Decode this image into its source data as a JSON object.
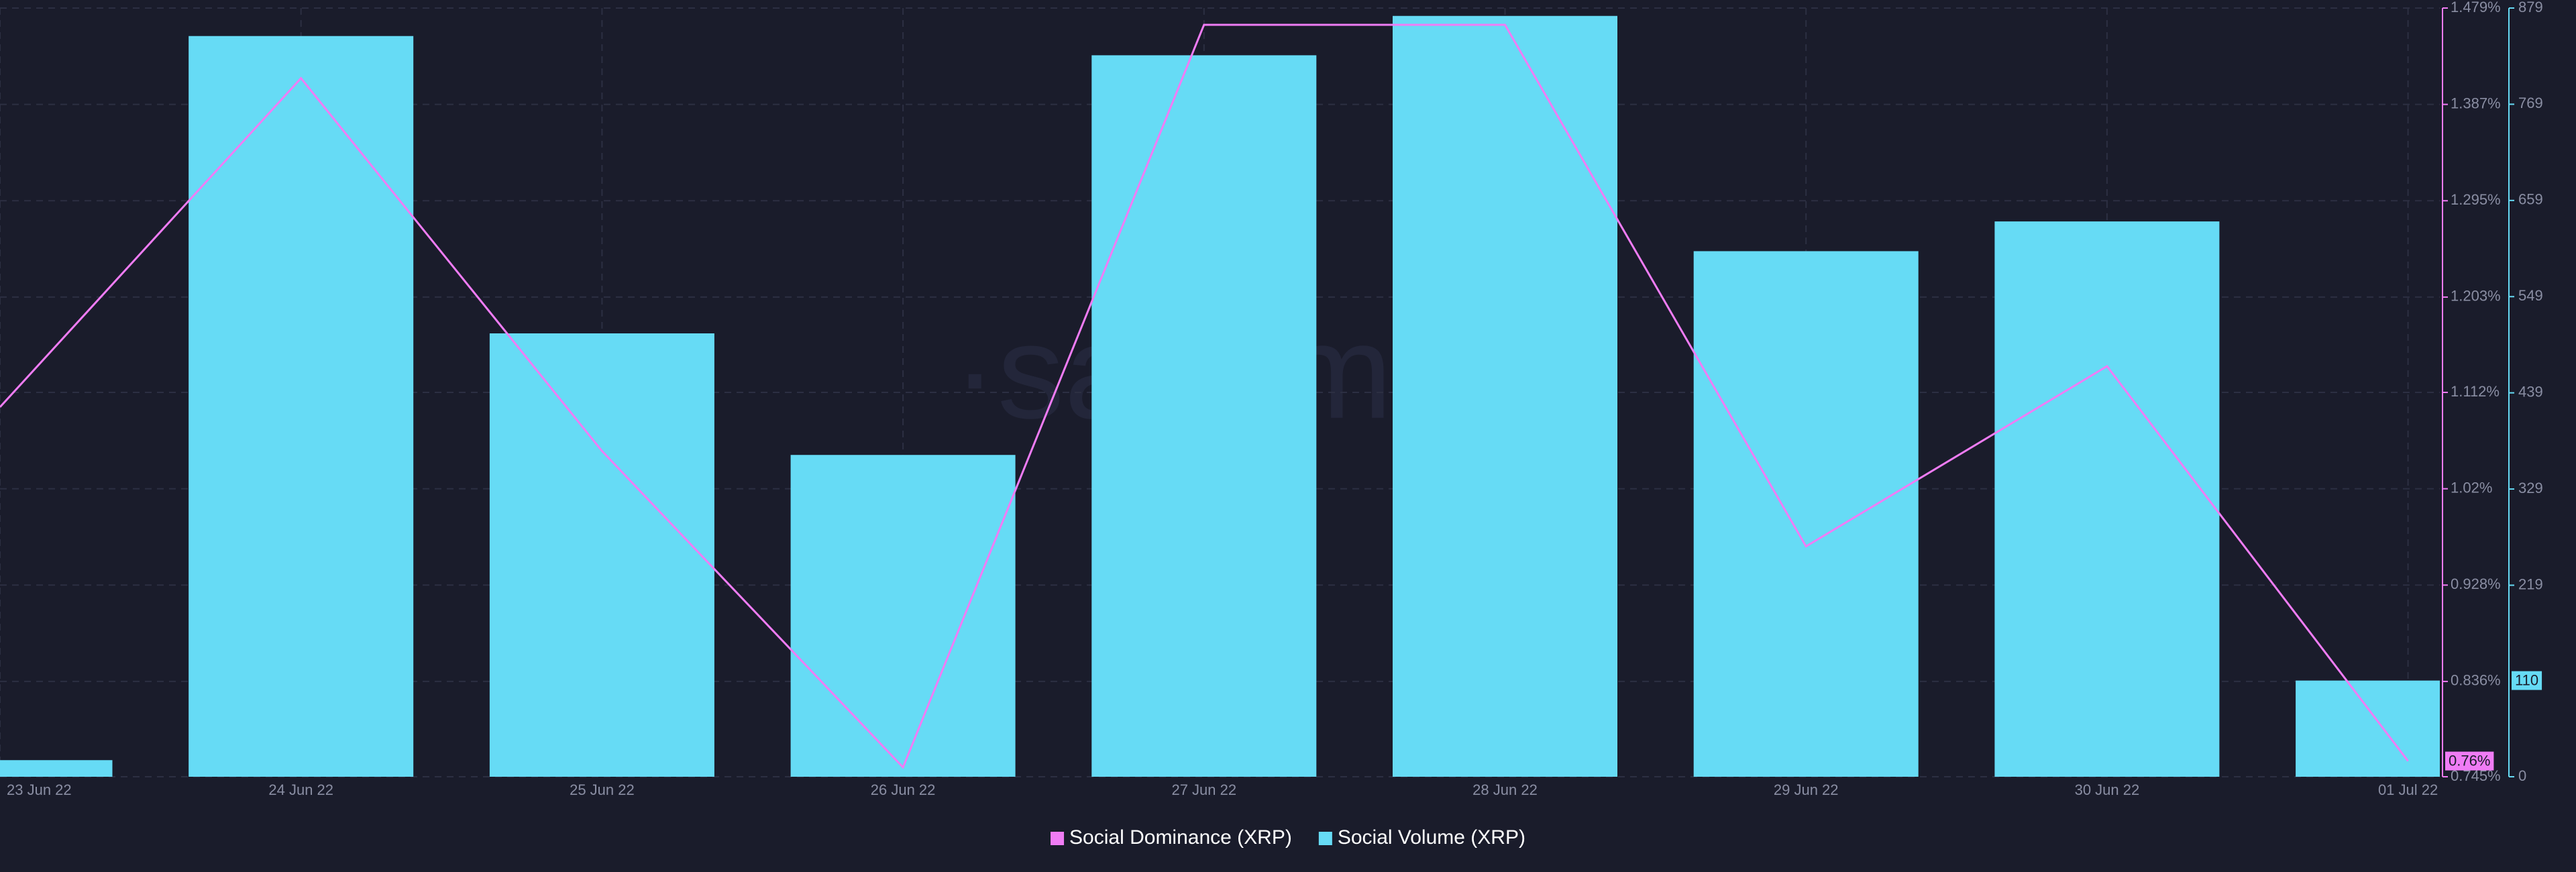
{
  "chart_data": {
    "type": "combo",
    "watermark": "·santiment",
    "categories": [
      "23 Jun 22",
      "24 Jun 22",
      "25 Jun 22",
      "26 Jun 22",
      "27 Jun 22",
      "28 Jun 22",
      "29 Jun 22",
      "30 Jun 22",
      "01 Jul 22"
    ],
    "series": [
      {
        "name": "Social Dominance (XRP)",
        "type": "line",
        "color": "#f07cf5",
        "axis": "y",
        "values": [
          1.098,
          1.412,
          1.056,
          0.754,
          1.463,
          1.463,
          0.965,
          1.137,
          0.76
        ],
        "value_labels": [
          null,
          null,
          null,
          null,
          null,
          null,
          null,
          null,
          "0.76%"
        ]
      },
      {
        "name": "Social Volume (XRP)",
        "type": "bar",
        "color": "#66dbf5",
        "axis": "y2",
        "values": [
          19,
          847,
          507,
          368,
          825,
          870,
          601,
          635,
          110
        ]
      }
    ],
    "ylim": [
      0.745,
      1.479
    ],
    "yticks": [
      {
        "value": 0.745,
        "label": "0.745%"
      },
      {
        "value": 0.836,
        "label": "0.836%"
      },
      {
        "value": 0.928,
        "label": "0.928%"
      },
      {
        "value": 1.02,
        "label": "1.02%"
      },
      {
        "value": 1.112,
        "label": "1.112%"
      },
      {
        "value": 1.203,
        "label": "1.203%"
      },
      {
        "value": 1.295,
        "label": "1.295%"
      },
      {
        "value": 1.387,
        "label": "1.387%"
      },
      {
        "value": 1.479,
        "label": "1.479%"
      }
    ],
    "y2lim": [
      0,
      879
    ],
    "y2ticks": [
      0,
      219,
      329,
      439,
      549,
      659,
      769,
      879
    ],
    "grid": true
  }
}
